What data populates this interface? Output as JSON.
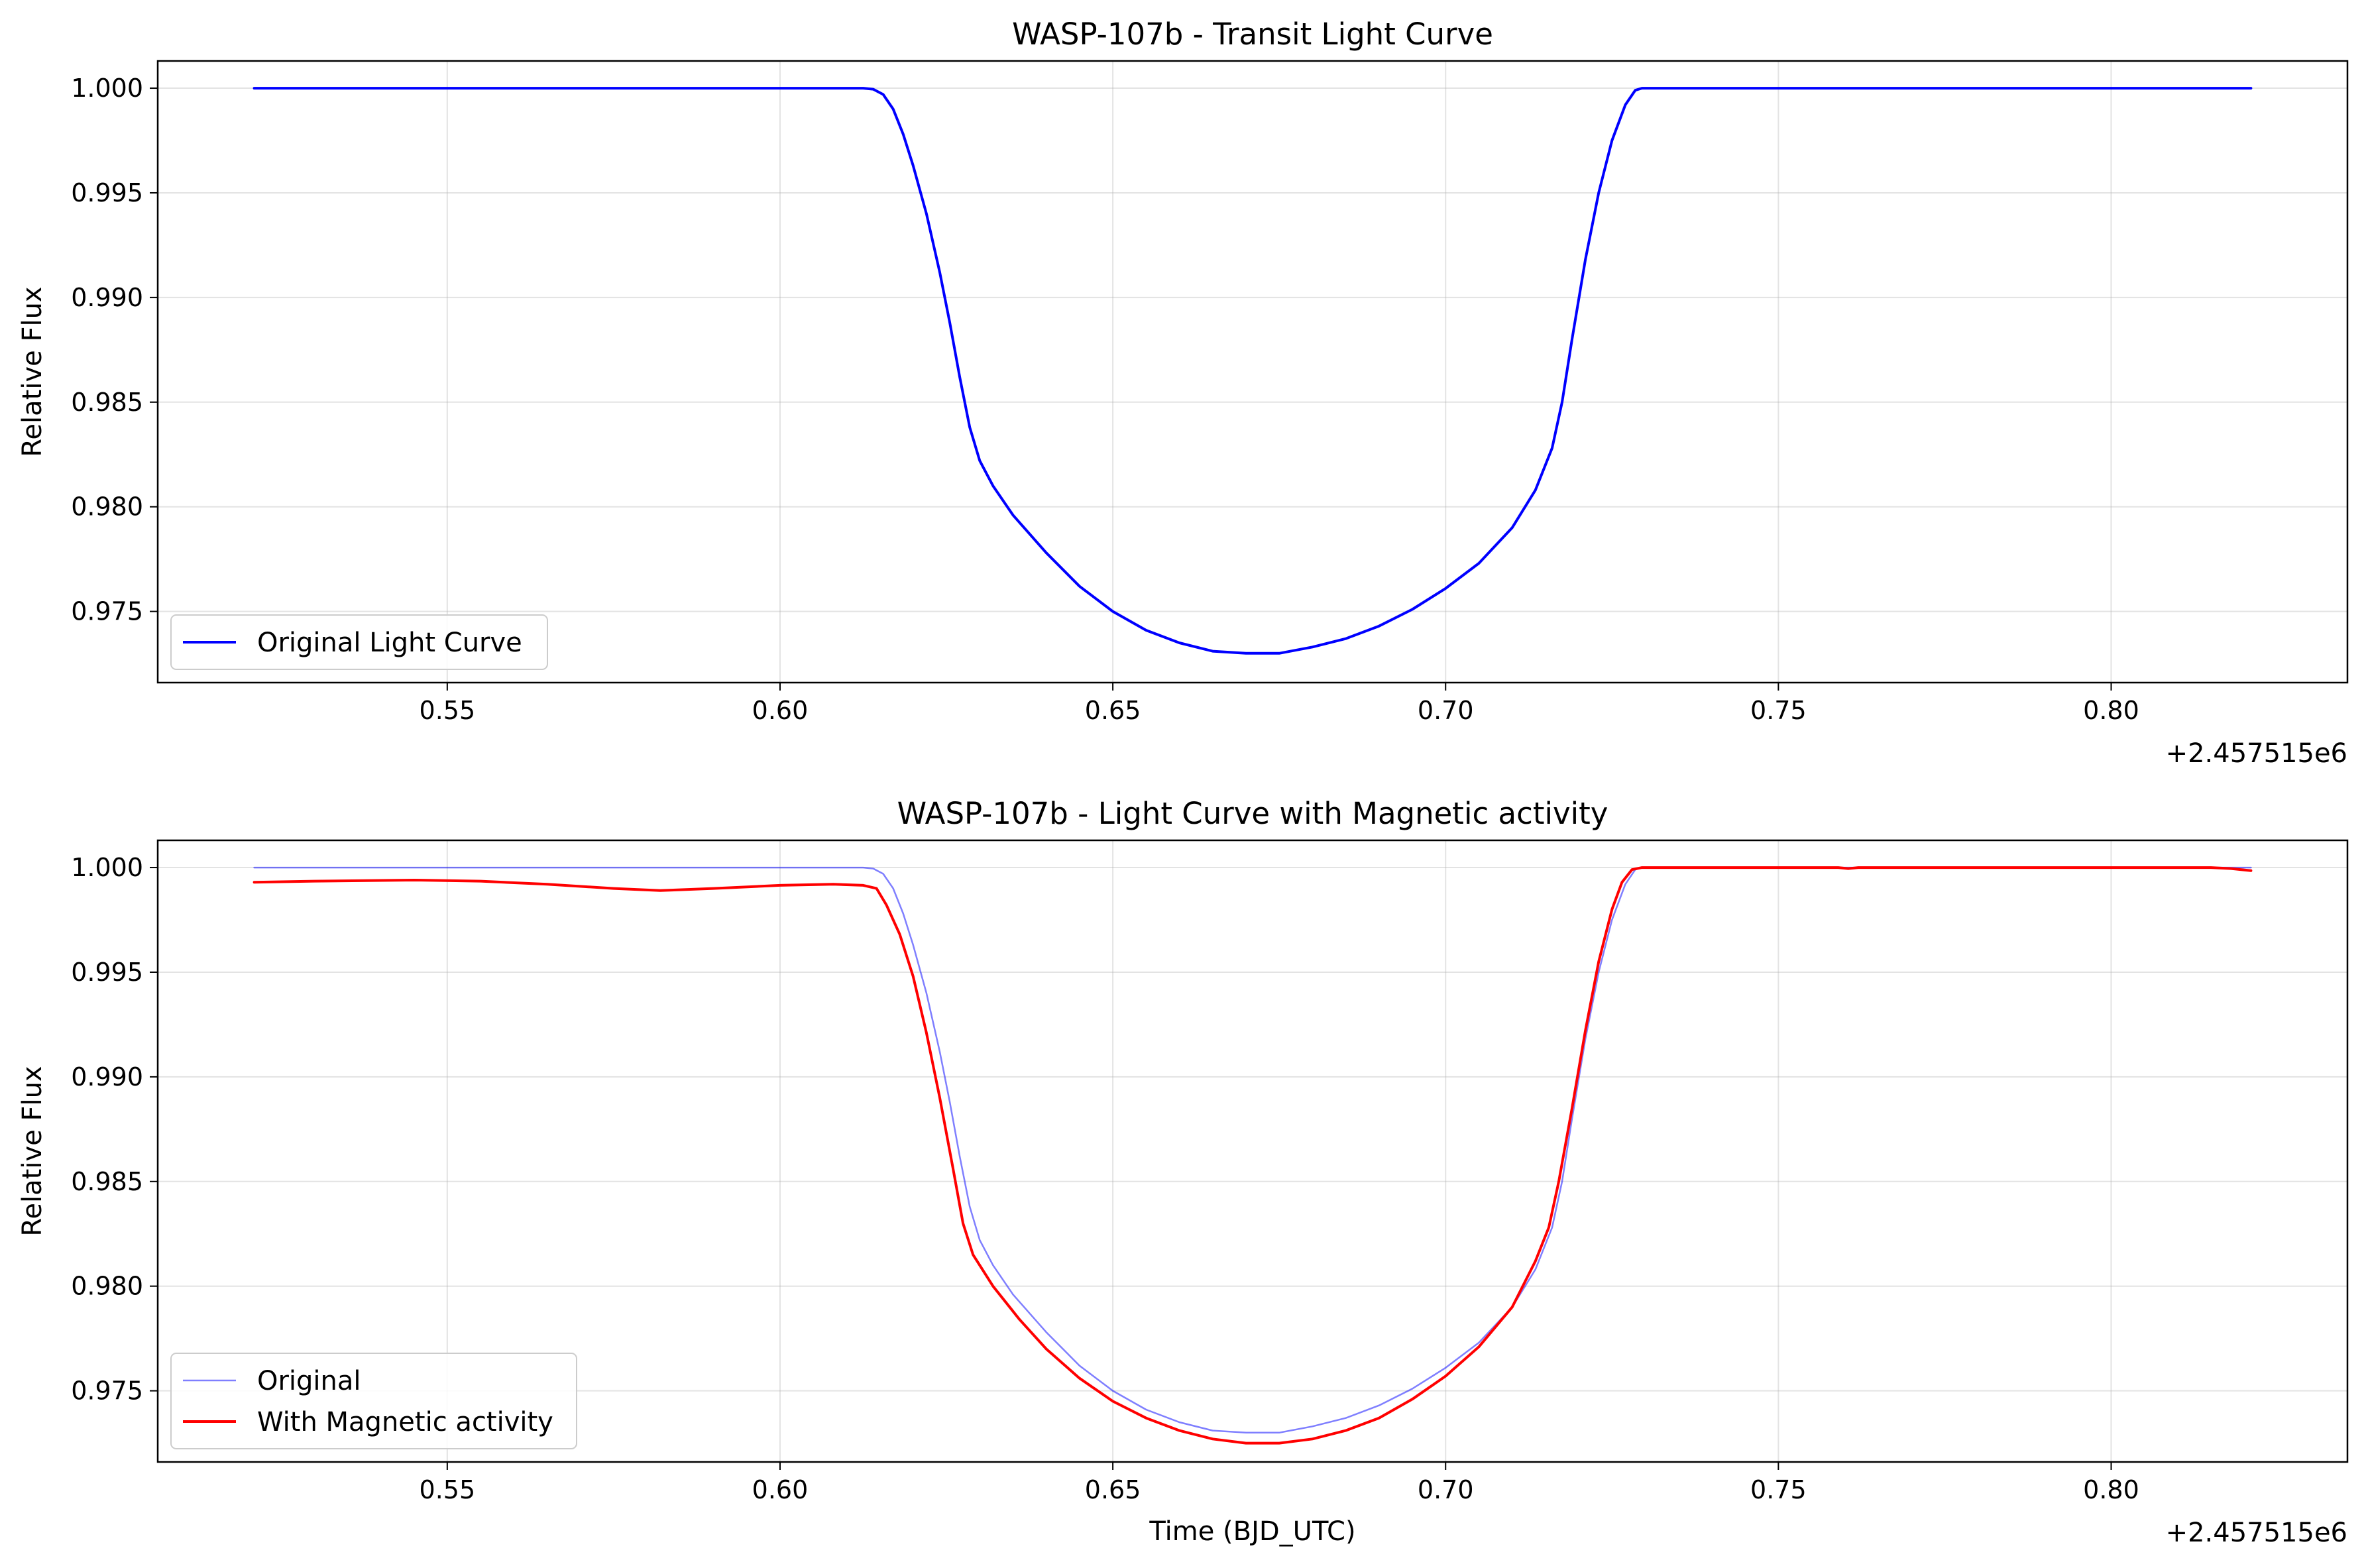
{
  "chart_data": [
    {
      "type": "line",
      "title": "WASP-107b - Transit Light Curve",
      "xlabel": "",
      "ylabel": "Relative Flux",
      "x_offset_label": "+2.457515e6",
      "x_offset": 2457515,
      "xlim": [
        0.5065,
        0.8355
      ],
      "ylim": [
        0.9716,
        1.0013
      ],
      "xticks": [
        0.55,
        0.6,
        0.65,
        0.7,
        0.75,
        0.8
      ],
      "xtick_labels": [
        "0.55",
        "0.60",
        "0.65",
        "0.70",
        "0.75",
        "0.80"
      ],
      "yticks": [
        0.975,
        0.98,
        0.985,
        0.99,
        0.995,
        1.0
      ],
      "ytick_labels": [
        "0.975",
        "0.980",
        "0.985",
        "0.990",
        "0.995",
        "1.000"
      ],
      "grid": true,
      "legend_position": "lower-left",
      "series": [
        {
          "name": "Original Light Curve",
          "color": "#0000ff",
          "line_width": 4,
          "opacity": 1,
          "points": [
            [
              0.521,
              1.0
            ],
            [
              0.57,
              1.0
            ],
            [
              0.6125,
              1.0
            ],
            [
              0.614,
              0.99995
            ],
            [
              0.6155,
              0.9997
            ],
            [
              0.617,
              0.999
            ],
            [
              0.6185,
              0.9978
            ],
            [
              0.62,
              0.9963
            ],
            [
              0.622,
              0.994
            ],
            [
              0.624,
              0.9912
            ],
            [
              0.6255,
              0.9888
            ],
            [
              0.627,
              0.9862
            ],
            [
              0.6285,
              0.9838
            ],
            [
              0.63,
              0.9822
            ],
            [
              0.632,
              0.981
            ],
            [
              0.635,
              0.9796
            ],
            [
              0.64,
              0.9778
            ],
            [
              0.645,
              0.9762
            ],
            [
              0.65,
              0.975
            ],
            [
              0.655,
              0.9741
            ],
            [
              0.66,
              0.9735
            ],
            [
              0.665,
              0.9731
            ],
            [
              0.67,
              0.973
            ],
            [
              0.675,
              0.973
            ],
            [
              0.68,
              0.9733
            ],
            [
              0.685,
              0.9737
            ],
            [
              0.69,
              0.9743
            ],
            [
              0.695,
              0.9751
            ],
            [
              0.7,
              0.9761
            ],
            [
              0.705,
              0.9773
            ],
            [
              0.71,
              0.979
            ],
            [
              0.7135,
              0.9808
            ],
            [
              0.716,
              0.9828
            ],
            [
              0.7175,
              0.985
            ],
            [
              0.719,
              0.988
            ],
            [
              0.721,
              0.9918
            ],
            [
              0.723,
              0.995
            ],
            [
              0.725,
              0.9975
            ],
            [
              0.727,
              0.9992
            ],
            [
              0.7285,
              0.9999
            ],
            [
              0.7295,
              1.0
            ],
            [
              0.76,
              1.0
            ],
            [
              0.821,
              1.0
            ]
          ]
        }
      ]
    },
    {
      "type": "line",
      "title": "WASP-107b - Light Curve with Magnetic activity",
      "xlabel": "Time (BJD_UTC)",
      "ylabel": "Relative Flux",
      "x_offset_label": "+2.457515e6",
      "x_offset": 2457515,
      "xlim": [
        0.5065,
        0.8355
      ],
      "ylim": [
        0.9716,
        1.0013
      ],
      "xticks": [
        0.55,
        0.6,
        0.65,
        0.7,
        0.75,
        0.8
      ],
      "xtick_labels": [
        "0.55",
        "0.60",
        "0.65",
        "0.70",
        "0.75",
        "0.80"
      ],
      "yticks": [
        0.975,
        0.98,
        0.985,
        0.99,
        0.995,
        1.0
      ],
      "ytick_labels": [
        "0.975",
        "0.980",
        "0.985",
        "0.990",
        "0.995",
        "1.000"
      ],
      "grid": true,
      "legend_position": "lower-left",
      "series": [
        {
          "name": "Original",
          "color": "#0000ff",
          "line_width": 2.5,
          "opacity": 0.5,
          "points": [
            [
              0.521,
              1.0
            ],
            [
              0.57,
              1.0
            ],
            [
              0.6125,
              1.0
            ],
            [
              0.614,
              0.99995
            ],
            [
              0.6155,
              0.9997
            ],
            [
              0.617,
              0.999
            ],
            [
              0.6185,
              0.9978
            ],
            [
              0.62,
              0.9963
            ],
            [
              0.622,
              0.994
            ],
            [
              0.624,
              0.9912
            ],
            [
              0.6255,
              0.9888
            ],
            [
              0.627,
              0.9862
            ],
            [
              0.6285,
              0.9838
            ],
            [
              0.63,
              0.9822
            ],
            [
              0.632,
              0.981
            ],
            [
              0.635,
              0.9796
            ],
            [
              0.64,
              0.9778
            ],
            [
              0.645,
              0.9762
            ],
            [
              0.65,
              0.975
            ],
            [
              0.655,
              0.9741
            ],
            [
              0.66,
              0.9735
            ],
            [
              0.665,
              0.9731
            ],
            [
              0.67,
              0.973
            ],
            [
              0.675,
              0.973
            ],
            [
              0.68,
              0.9733
            ],
            [
              0.685,
              0.9737
            ],
            [
              0.69,
              0.9743
            ],
            [
              0.695,
              0.9751
            ],
            [
              0.7,
              0.9761
            ],
            [
              0.705,
              0.9773
            ],
            [
              0.71,
              0.979
            ],
            [
              0.7135,
              0.9808
            ],
            [
              0.716,
              0.9828
            ],
            [
              0.7175,
              0.985
            ],
            [
              0.719,
              0.988
            ],
            [
              0.721,
              0.9918
            ],
            [
              0.723,
              0.995
            ],
            [
              0.725,
              0.9975
            ],
            [
              0.727,
              0.9992
            ],
            [
              0.7285,
              0.9999
            ],
            [
              0.7295,
              1.0
            ],
            [
              0.76,
              1.0
            ],
            [
              0.821,
              1.0
            ]
          ]
        },
        {
          "name": "With Magnetic activity",
          "color": "#ff0000",
          "line_width": 4,
          "opacity": 1,
          "points": [
            [
              0.521,
              0.9993
            ],
            [
              0.53,
              0.99935
            ],
            [
              0.545,
              0.9994
            ],
            [
              0.555,
              0.99935
            ],
            [
              0.565,
              0.9992
            ],
            [
              0.575,
              0.999
            ],
            [
              0.582,
              0.9989
            ],
            [
              0.59,
              0.999
            ],
            [
              0.6,
              0.99915
            ],
            [
              0.608,
              0.9992
            ],
            [
              0.6125,
              0.99915
            ],
            [
              0.6145,
              0.999
            ],
            [
              0.616,
              0.9982
            ],
            [
              0.618,
              0.9968
            ],
            [
              0.62,
              0.9948
            ],
            [
              0.622,
              0.9921
            ],
            [
              0.624,
              0.989
            ],
            [
              0.626,
              0.9856
            ],
            [
              0.6275,
              0.983
            ],
            [
              0.629,
              0.9815
            ],
            [
              0.632,
              0.98
            ],
            [
              0.636,
              0.9784
            ],
            [
              0.64,
              0.977
            ],
            [
              0.645,
              0.9756
            ],
            [
              0.65,
              0.9745
            ],
            [
              0.655,
              0.9737
            ],
            [
              0.66,
              0.9731
            ],
            [
              0.665,
              0.9727
            ],
            [
              0.67,
              0.9725
            ],
            [
              0.675,
              0.9725
            ],
            [
              0.68,
              0.9727
            ],
            [
              0.685,
              0.9731
            ],
            [
              0.69,
              0.9737
            ],
            [
              0.695,
              0.9746
            ],
            [
              0.7,
              0.9757
            ],
            [
              0.705,
              0.9771
            ],
            [
              0.71,
              0.979
            ],
            [
              0.7135,
              0.9812
            ],
            [
              0.7155,
              0.9828
            ],
            [
              0.717,
              0.985
            ],
            [
              0.719,
              0.9885
            ],
            [
              0.721,
              0.9922
            ],
            [
              0.723,
              0.9955
            ],
            [
              0.725,
              0.998
            ],
            [
              0.7265,
              0.9993
            ],
            [
              0.728,
              0.9999
            ],
            [
              0.7295,
              1.0
            ],
            [
              0.745,
              1.0
            ],
            [
              0.759,
              1.0
            ],
            [
              0.7605,
              0.99995
            ],
            [
              0.762,
              1.0
            ],
            [
              0.79,
              1.0
            ],
            [
              0.815,
              1.0
            ],
            [
              0.818,
              0.99995
            ],
            [
              0.821,
              0.99985
            ]
          ]
        }
      ]
    }
  ]
}
